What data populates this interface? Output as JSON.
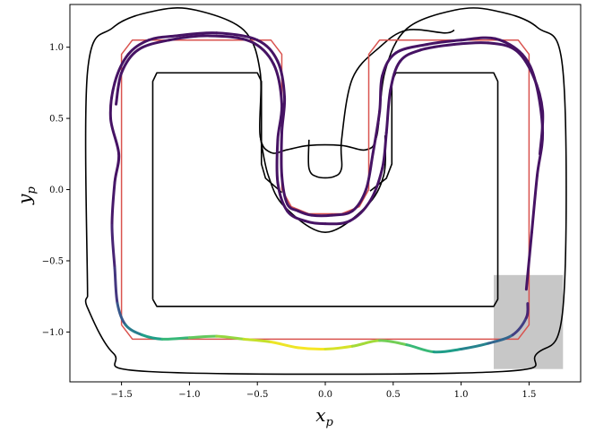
{
  "chart_data": {
    "type": "line",
    "title": "",
    "xlabel": "x",
    "xlabel_sub": "p",
    "ylabel": "y",
    "ylabel_sub": "p",
    "xlim": [
      -1.88,
      1.88
    ],
    "ylim": [
      -1.35,
      1.3
    ],
    "grid": false,
    "xticks": [
      {
        "v": -1.5,
        "label": "−1.5"
      },
      {
        "v": -1.0,
        "label": "−1.0"
      },
      {
        "v": -0.5,
        "label": "−0.5"
      },
      {
        "v": 0.0,
        "label": "0.0"
      },
      {
        "v": 0.5,
        "label": "0.5"
      },
      {
        "v": 1.0,
        "label": "1.0"
      },
      {
        "v": 1.5,
        "label": "1.5"
      }
    ],
    "yticks": [
      {
        "v": 1.0,
        "label": "1.0"
      },
      {
        "v": 0.5,
        "label": "0.5"
      },
      {
        "v": 0.0,
        "label": "0.0"
      },
      {
        "v": -0.5,
        "label": "−0.5"
      },
      {
        "v": -1.0,
        "label": "−1.0"
      }
    ],
    "track_outer": [
      [
        -1.75,
        -0.75
      ],
      [
        -1.75,
        0.83
      ],
      [
        -1.56,
        1.14
      ],
      [
        -1.23,
        1.26
      ],
      [
        -0.95,
        1.26
      ],
      [
        -0.6,
        1.12
      ],
      [
        -0.48,
        0.83
      ],
      [
        -0.48,
        0.38
      ],
      [
        -0.4,
        0.26
      ],
      [
        -0.28,
        0.28
      ],
      [
        -0.12,
        0.31
      ],
      [
        0.12,
        0.31
      ],
      [
        0.3,
        0.28
      ],
      [
        0.38,
        0.38
      ],
      [
        0.44,
        0.83
      ],
      [
        0.6,
        1.13
      ],
      [
        0.95,
        1.26
      ],
      [
        1.23,
        1.26
      ],
      [
        1.56,
        1.14
      ],
      [
        1.75,
        0.83
      ],
      [
        1.75,
        -0.83
      ],
      [
        1.56,
        -1.15
      ],
      [
        1.25,
        -1.28
      ],
      [
        -1.25,
        -1.28
      ],
      [
        -1.56,
        -1.15
      ],
      [
        -1.75,
        -0.83
      ],
      [
        -1.75,
        -0.75
      ]
    ],
    "track_outer_u": [
      [
        -0.48,
        0.38
      ],
      [
        -0.42,
        0.1
      ],
      [
        -0.3,
        -0.12
      ],
      [
        0,
        -0.3
      ],
      [
        0.3,
        -0.12
      ],
      [
        0.43,
        0.1
      ],
      [
        0.44,
        0.38
      ]
    ],
    "track_inner": [
      [
        -1.27,
        -0.77
      ],
      [
        -1.27,
        0.76
      ],
      [
        -1.24,
        0.82
      ],
      [
        -0.5,
        0.82
      ],
      [
        -0.47,
        0.76
      ],
      [
        -0.47,
        0.18
      ],
      [
        -0.44,
        0.08
      ],
      [
        -0.32,
        -0.02
      ]
    ],
    "track_inner2": [
      [
        -1.27,
        -0.77
      ],
      [
        -1.24,
        -0.82
      ],
      [
        1.24,
        -0.82
      ],
      [
        1.27,
        -0.77
      ],
      [
        1.27,
        0.76
      ],
      [
        1.24,
        0.82
      ],
      [
        0.52,
        0.82
      ],
      [
        0.49,
        0.76
      ],
      [
        0.49,
        0.18
      ],
      [
        0.45,
        0.08
      ],
      [
        0.33,
        -0.01
      ]
    ],
    "track_u_inner": [
      [
        -0.12,
        0.35
      ],
      [
        -0.12,
        0.15
      ],
      [
        -0.06,
        0.09
      ],
      [
        0.06,
        0.09
      ],
      [
        0.12,
        0.15
      ],
      [
        0.12,
        0.35
      ],
      [
        0.2,
        0.78
      ],
      [
        0.4,
        1.0
      ],
      [
        0.6,
        1.12
      ],
      [
        0.88,
        1.1
      ],
      [
        0.95,
        1.12
      ]
    ],
    "reference_path": [
      [
        -1.5,
        -0.95
      ],
      [
        -1.5,
        0.95
      ],
      [
        -1.42,
        1.05
      ],
      [
        -0.4,
        1.05
      ],
      [
        -0.32,
        0.95
      ],
      [
        -0.32,
        0.0
      ],
      [
        -0.25,
        -0.12
      ],
      [
        -0.12,
        -0.17
      ],
      [
        0.12,
        -0.17
      ],
      [
        0.25,
        -0.12
      ],
      [
        0.32,
        0.0
      ],
      [
        0.32,
        0.95
      ],
      [
        0.4,
        1.05
      ],
      [
        1.42,
        1.05
      ],
      [
        1.5,
        0.95
      ],
      [
        1.5,
        -0.95
      ],
      [
        1.42,
        -1.05
      ],
      [
        -1.42,
        -1.05
      ],
      [
        -1.5,
        -0.95
      ]
    ],
    "start_region": {
      "x": [
        1.24,
        1.75
      ],
      "y": [
        -1.26,
        -0.6
      ]
    },
    "series": [
      {
        "points": [
          [
            1.48,
            -0.7
          ],
          [
            1.52,
            -0.3
          ],
          [
            1.56,
            0.1
          ],
          [
            1.6,
            0.4
          ],
          [
            1.55,
            0.75
          ],
          [
            1.45,
            0.95
          ],
          [
            1.25,
            1.06
          ],
          [
            1.0,
            1.05
          ],
          [
            0.75,
            1.02
          ],
          [
            0.52,
            0.96
          ],
          [
            0.42,
            0.8
          ],
          [
            0.4,
            0.55
          ],
          [
            0.35,
            0.25
          ],
          [
            0.3,
            0.0
          ],
          [
            0.2,
            -0.15
          ],
          [
            0.05,
            -0.18
          ],
          [
            -0.1,
            -0.18
          ],
          [
            -0.2,
            -0.15
          ],
          [
            -0.28,
            -0.1
          ],
          [
            -0.32,
            0.1
          ],
          [
            -0.32,
            0.4
          ],
          [
            -0.3,
            0.65
          ],
          [
            -0.35,
            0.9
          ],
          [
            -0.5,
            1.05
          ],
          [
            -0.8,
            1.1
          ],
          [
            -1.1,
            1.08
          ],
          [
            -1.3,
            1.05
          ],
          [
            -1.45,
            0.95
          ],
          [
            -1.55,
            0.75
          ],
          [
            -1.58,
            0.5
          ],
          [
            -1.52,
            0.25
          ],
          [
            -1.55,
            0.05
          ],
          [
            -1.57,
            -0.25
          ],
          [
            -1.55,
            -0.55
          ],
          [
            -1.53,
            -0.8
          ],
          [
            -1.47,
            -0.95
          ],
          [
            -1.35,
            -1.02
          ],
          [
            -1.2,
            -1.05
          ],
          [
            -1.0,
            -1.04
          ],
          [
            -0.8,
            -1.03
          ],
          [
            -0.6,
            -1.05
          ],
          [
            -0.4,
            -1.07
          ],
          [
            -0.2,
            -1.11
          ],
          [
            0.0,
            -1.12
          ],
          [
            0.2,
            -1.1
          ],
          [
            0.4,
            -1.06
          ],
          [
            0.6,
            -1.09
          ],
          [
            0.8,
            -1.14
          ],
          [
            1.0,
            -1.12
          ],
          [
            1.2,
            -1.08
          ],
          [
            1.38,
            -1.02
          ],
          [
            1.48,
            -0.9
          ],
          [
            1.49,
            -0.8
          ]
        ],
        "speed": [
          0.05,
          0.05,
          0.05,
          0.05,
          0.05,
          0.05,
          0.05,
          0.05,
          0.05,
          0.05,
          0.05,
          0.05,
          0.05,
          0.05,
          0.05,
          0.05,
          0.05,
          0.05,
          0.05,
          0.05,
          0.05,
          0.05,
          0.05,
          0.05,
          0.05,
          0.05,
          0.05,
          0.05,
          0.05,
          0.05,
          0.05,
          0.05,
          0.08,
          0.12,
          0.2,
          0.35,
          0.5,
          0.62,
          0.72,
          0.8,
          0.88,
          0.95,
          1.0,
          0.98,
          0.9,
          0.82,
          0.75,
          0.6,
          0.5,
          0.4,
          0.25,
          0.12,
          0.08
        ]
      },
      {
        "points": [
          [
            1.58,
            0.25
          ],
          [
            1.6,
            0.55
          ],
          [
            1.53,
            0.8
          ],
          [
            1.4,
            0.98
          ],
          [
            1.2,
            1.03
          ],
          [
            0.95,
            1.02
          ],
          [
            0.7,
            0.98
          ],
          [
            0.55,
            0.9
          ],
          [
            0.48,
            0.7
          ],
          [
            0.45,
            0.4
          ],
          [
            0.42,
            0.15
          ],
          [
            0.33,
            -0.08
          ],
          [
            0.18,
            -0.22
          ],
          [
            0.0,
            -0.24
          ],
          [
            -0.15,
            -0.22
          ],
          [
            -0.28,
            -0.15
          ],
          [
            -0.35,
            0.05
          ],
          [
            -0.35,
            0.35
          ],
          [
            -0.32,
            0.6
          ],
          [
            -0.38,
            0.88
          ],
          [
            -0.55,
            1.04
          ],
          [
            -0.85,
            1.08
          ],
          [
            -1.15,
            1.05
          ],
          [
            -1.38,
            0.98
          ],
          [
            -1.5,
            0.82
          ],
          [
            -1.54,
            0.6
          ]
        ],
        "speed": [
          0.05,
          0.05,
          0.05,
          0.05,
          0.05,
          0.05,
          0.05,
          0.05,
          0.05,
          0.05,
          0.05,
          0.05,
          0.05,
          0.05,
          0.05,
          0.05,
          0.05,
          0.05,
          0.05,
          0.05,
          0.05,
          0.05,
          0.05,
          0.05,
          0.05,
          0.05
        ]
      }
    ]
  }
}
